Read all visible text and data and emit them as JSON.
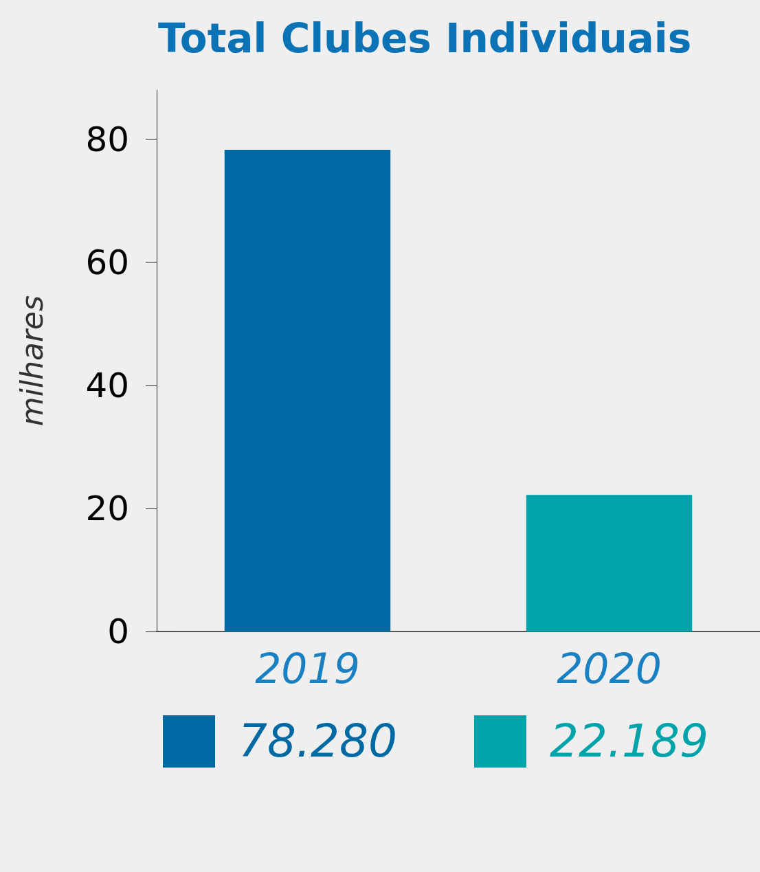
{
  "chart_data": {
    "type": "bar",
    "title": "Total Clubes Individuais",
    "ylabel": "milhares",
    "categories": [
      "2019",
      "2020"
    ],
    "values": [
      78.28,
      22.189
    ],
    "value_labels": [
      "78.280",
      "22.189"
    ],
    "colors": [
      "#0068a3",
      "#00a3aa"
    ],
    "ylim": [
      0,
      88
    ],
    "yticks": [
      0,
      20,
      40,
      60,
      80
    ],
    "grid": false
  }
}
